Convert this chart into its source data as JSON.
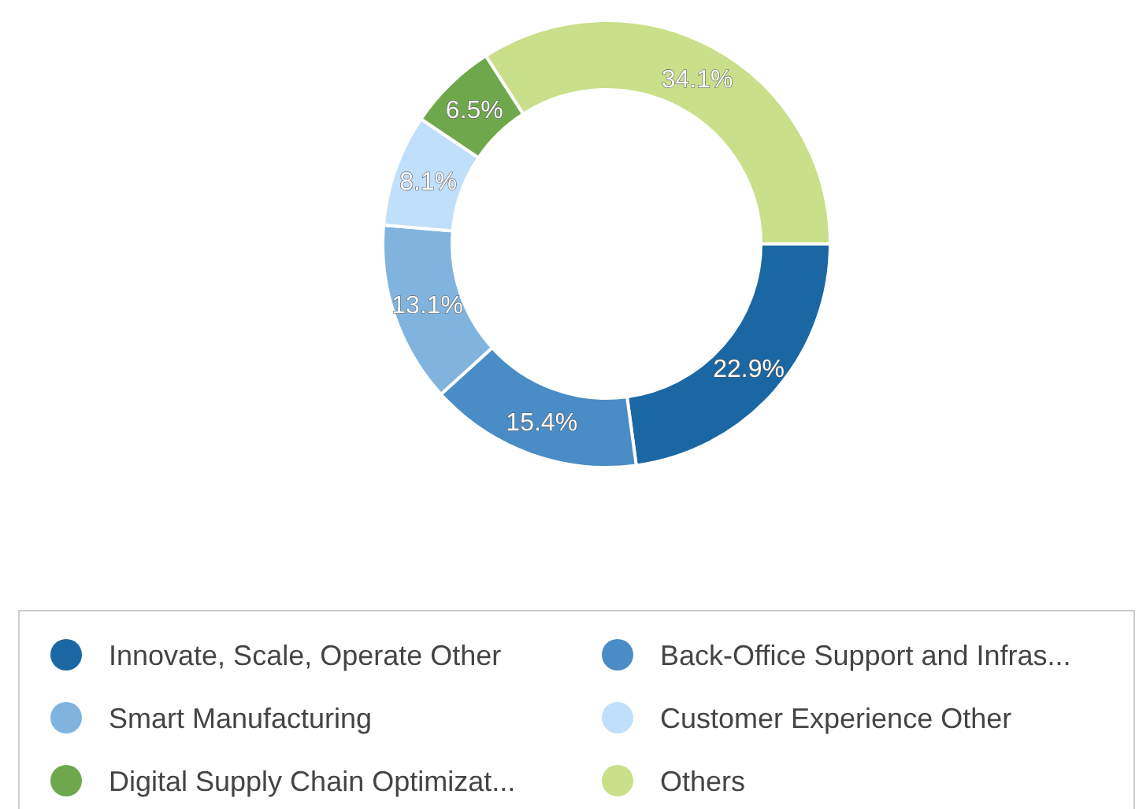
{
  "chart_data": {
    "type": "donut",
    "categories": [
      "Innovate, Scale, Operate Other",
      "Back-Office Support and Infras...",
      "Smart Manufacturing",
      "Customer Experience Other",
      "Digital Supply Chain Optimizat...",
      "Others"
    ],
    "values": [
      22.9,
      15.4,
      13.1,
      8.1,
      6.5,
      34.1
    ],
    "colors": [
      "#1a67a3",
      "#4a8dc6",
      "#80b4df",
      "#bfdffa",
      "#6fa84c",
      "#c9df8a"
    ],
    "value_labels": [
      "22.9%",
      "15.4%",
      "13.1%",
      "8.1%",
      "6.5%",
      "34.1%"
    ],
    "legend": "bottom"
  }
}
